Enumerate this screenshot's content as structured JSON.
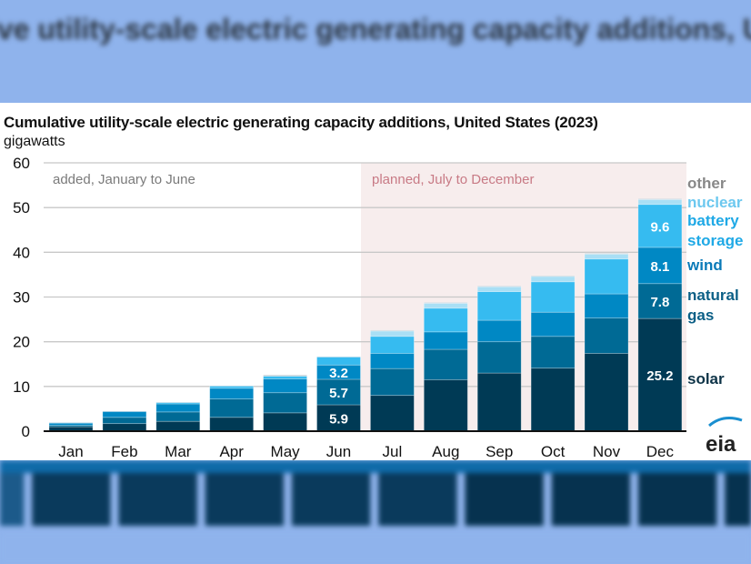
{
  "chart_data": {
    "type": "bar",
    "stacked": true,
    "title": "Cumulative utility-scale electric generating capacity additions, United States (2023)",
    "ylabel": "gigawatts",
    "ylim": [
      0,
      60
    ],
    "yticks": [
      0,
      10,
      20,
      30,
      40,
      50,
      60
    ],
    "grid": true,
    "legend_placement": "right",
    "categories": [
      "Jan",
      "Feb",
      "Mar",
      "Apr",
      "May",
      "Jun",
      "Jul",
      "Aug",
      "Sep",
      "Oct",
      "Nov",
      "Dec"
    ],
    "annotations": {
      "added": "added, January to June",
      "planned": "planned, July to December"
    },
    "series": [
      {
        "name": "solar",
        "color": "#003a55",
        "values": [
          1.0,
          1.7,
          2.2,
          3.1,
          4.1,
          5.9,
          8.0,
          11.5,
          13.0,
          14.1,
          17.4,
          25.2
        ]
      },
      {
        "name": "natural gas",
        "color": "#006a95",
        "values": [
          0.3,
          1.4,
          2.1,
          4.1,
          4.5,
          5.7,
          6.0,
          6.8,
          7.0,
          7.1,
          7.9,
          7.8
        ]
      },
      {
        "name": "wind",
        "color": "#0088c4",
        "values": [
          0.5,
          1.3,
          1.8,
          2.4,
          3.1,
          3.2,
          3.4,
          3.9,
          4.8,
          5.4,
          5.4,
          8.1
        ]
      },
      {
        "name": "battery storage",
        "color": "#36bbf0",
        "values": [
          0.1,
          0.0,
          0.3,
          0.5,
          0.6,
          1.8,
          3.8,
          5.3,
          6.4,
          6.8,
          7.8,
          9.6
        ]
      },
      {
        "name": "nuclear",
        "color": "#a9dff5",
        "values": [
          0.0,
          0.0,
          0.0,
          0.0,
          0.0,
          0.0,
          1.2,
          1.1,
          1.1,
          1.2,
          1.1,
          1.1
        ]
      },
      {
        "name": "other",
        "color": "#c9d3da",
        "values": [
          0.1,
          0.1,
          0.1,
          0.1,
          0.3,
          0.1,
          0.2,
          0.2,
          0.2,
          0.2,
          0.2,
          0.2
        ]
      }
    ],
    "data_labels": [
      {
        "category": "Jun",
        "series": "solar",
        "text": "5.9"
      },
      {
        "category": "Jun",
        "series": "natural gas",
        "text": "5.7"
      },
      {
        "category": "Jun",
        "series": "wind",
        "text": "3.2"
      },
      {
        "category": "Dec",
        "series": "solar",
        "text": "25.2"
      },
      {
        "category": "Dec",
        "series": "natural gas",
        "text": "7.8"
      },
      {
        "category": "Dec",
        "series": "wind",
        "text": "8.1"
      },
      {
        "category": "Dec",
        "series": "battery storage",
        "text": "9.6"
      }
    ],
    "legend_labels": [
      {
        "series": "other",
        "lines": [
          "other"
        ],
        "color": "#888888"
      },
      {
        "series": "nuclear",
        "lines": [
          "nuclear"
        ],
        "color": "#6cc8ef"
      },
      {
        "series": "battery storage",
        "lines": [
          "battery",
          "storage"
        ],
        "color": "#1fa9e6"
      },
      {
        "series": "wind",
        "lines": [
          "wind"
        ],
        "color": "#0a7ab8"
      },
      {
        "series": "natural gas",
        "lines": [
          "natural",
          "gas"
        ],
        "color": "#0b5f86"
      },
      {
        "series": "solar",
        "lines": [
          "solar"
        ],
        "color": "#0d3347"
      }
    ],
    "shaded_region_color": "#f7eded"
  },
  "logo": "eia"
}
